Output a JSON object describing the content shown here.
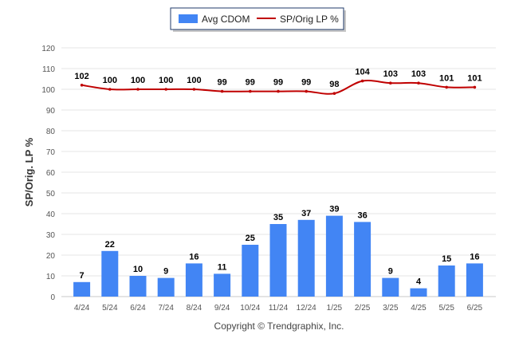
{
  "chart_data": {
    "type": "bar",
    "categories": [
      "4/24",
      "5/24",
      "6/24",
      "7/24",
      "8/24",
      "9/24",
      "10/24",
      "11/24",
      "12/24",
      "1/25",
      "2/25",
      "3/25",
      "4/25",
      "5/25",
      "6/25"
    ],
    "series": [
      {
        "name": "Avg CDOM",
        "type": "bar",
        "color": "#4285f4",
        "values": [
          7,
          22,
          10,
          9,
          16,
          11,
          25,
          35,
          37,
          39,
          36,
          9,
          4,
          15,
          16
        ]
      },
      {
        "name": "SP/Orig LP %",
        "type": "line",
        "color": "#c00000",
        "values": [
          102,
          100,
          100,
          100,
          100,
          99,
          99,
          99,
          99,
          98,
          104,
          103,
          103,
          101,
          101
        ]
      }
    ],
    "ylabel": "SP/Orig. LP %",
    "ylim": [
      0,
      120
    ],
    "yticks": [
      0,
      10,
      20,
      30,
      40,
      50,
      60,
      70,
      80,
      90,
      100,
      110,
      120
    ],
    "grid": true,
    "legend_position": "top-center",
    "credit": "Copyright © Trendgraphix, Inc."
  }
}
